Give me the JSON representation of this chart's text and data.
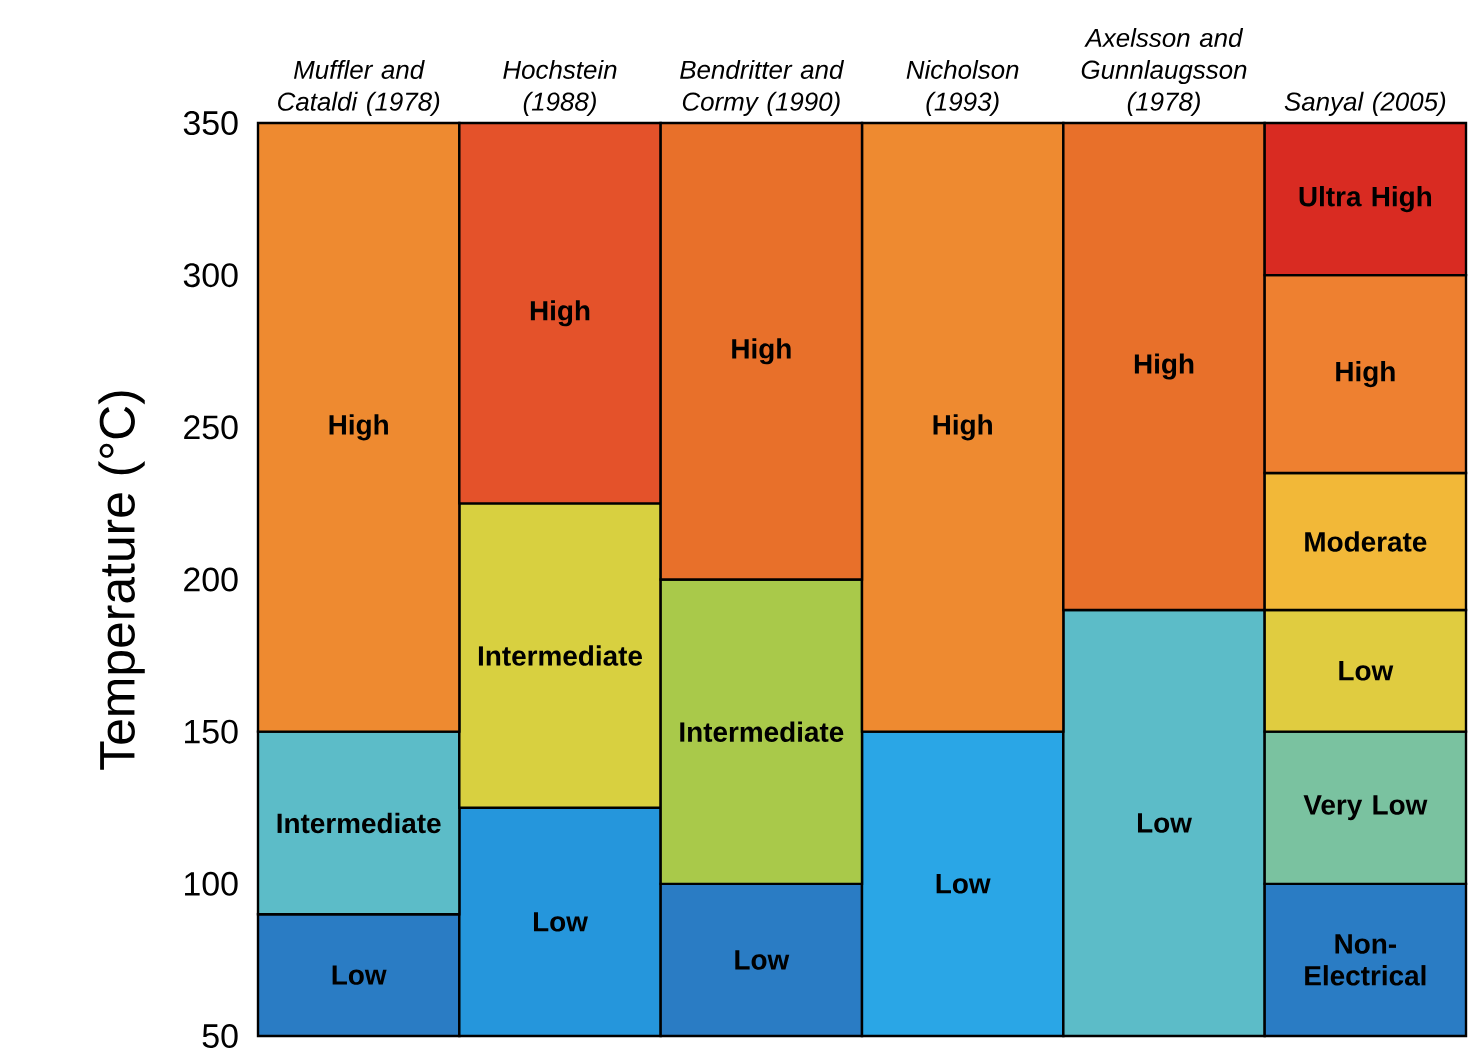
{
  "chart_data": {
    "type": "bar",
    "ylabel": "Temperature (°C)",
    "categories": [
      "Muffler and Cataldi (1978)",
      "Hochstein (1988)",
      "Bendritter and Cormy (1990)",
      "Nicholson (1993)",
      "Axelsson and Gunnlaugsson (1978)",
      "Sanyal (2005)"
    ],
    "ylim": [
      50,
      350
    ],
    "yticks": [
      50,
      100,
      150,
      200,
      250,
      300,
      350
    ],
    "series": [
      {
        "base": [
          50,
          50,
          50,
          50,
          50,
          50
        ],
        "values": [
          40,
          75,
          50,
          100,
          140,
          50
        ],
        "colors": [
          "#2a7cc4",
          "#2596dc",
          "#2a7cc4",
          "#2aa6e6",
          "#5cbcc8",
          "#2a7cc4"
        ],
        "value_labels": [
          "Low",
          "Low",
          "Low",
          "Low",
          "Low",
          "Non-Electrical"
        ]
      },
      {
        "base": [
          90,
          125,
          100,
          150,
          190,
          100
        ],
        "values": [
          60,
          100,
          100,
          200,
          160,
          50
        ],
        "colors": [
          "#5cbcc8",
          "#d8d040",
          "#a9c94a",
          "#ee8a30",
          "#e8702a",
          "#7ac2a0"
        ],
        "value_labels": [
          "Intermediate",
          "Intermediate",
          "Intermediate",
          "High",
          "High",
          "Very Low"
        ]
      },
      {
        "base": [
          150,
          225,
          200,
          null,
          null,
          150
        ],
        "values": [
          200,
          125,
          150,
          null,
          null,
          40
        ],
        "colors": [
          "#ee8a30",
          "#e4522a",
          "#e8702a",
          null,
          null,
          "#e0cc40"
        ],
        "value_labels": [
          "High",
          "High",
          "High",
          null,
          null,
          "Low"
        ]
      },
      {
        "base": [
          null,
          null,
          null,
          null,
          null,
          190
        ],
        "values": [
          null,
          null,
          null,
          null,
          null,
          45
        ],
        "colors": [
          null,
          null,
          null,
          null,
          null,
          "#f2b838"
        ],
        "value_labels": [
          null,
          null,
          null,
          null,
          null,
          "Moderate"
        ]
      },
      {
        "base": [
          null,
          null,
          null,
          null,
          null,
          235
        ],
        "values": [
          null,
          null,
          null,
          null,
          null,
          65
        ],
        "colors": [
          null,
          null,
          null,
          null,
          null,
          "#ee8030"
        ],
        "value_labels": [
          null,
          null,
          null,
          null,
          null,
          "High"
        ]
      },
      {
        "base": [
          null,
          null,
          null,
          null,
          null,
          300
        ],
        "values": [
          null,
          null,
          null,
          null,
          null,
          50
        ],
        "colors": [
          null,
          null,
          null,
          null,
          null,
          "#d92b22"
        ],
        "value_labels": [
          null,
          null,
          null,
          null,
          null,
          "Ultra High"
        ]
      }
    ]
  }
}
